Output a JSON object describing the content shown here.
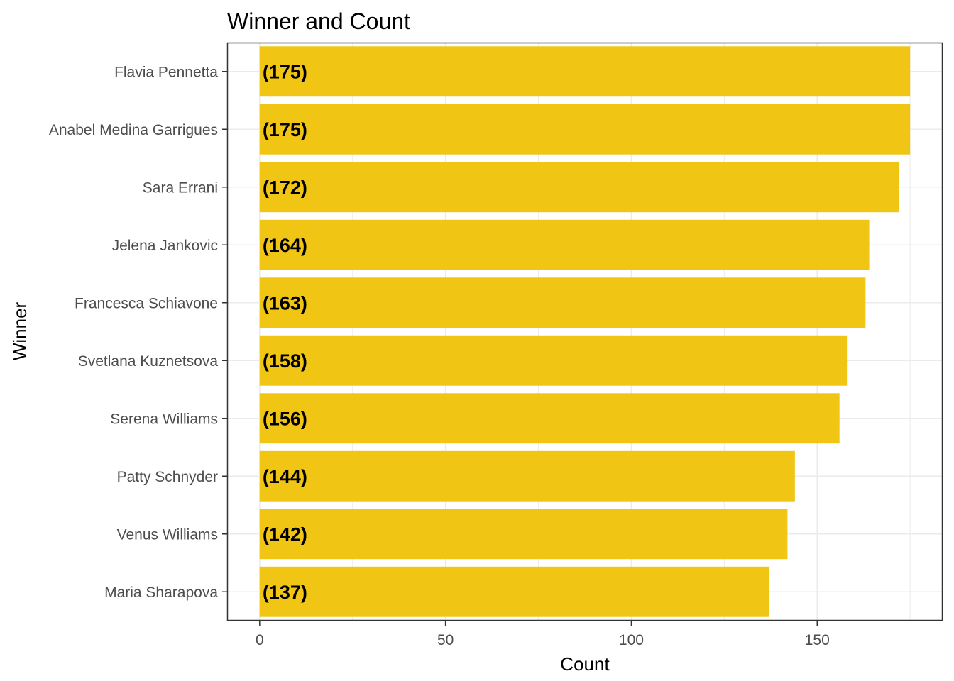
{
  "chart_data": {
    "type": "bar",
    "orientation": "horizontal",
    "title": "Winner and Count",
    "xlabel": "Count",
    "ylabel": "Winner",
    "categories": [
      "Flavia Pennetta",
      "Anabel Medina Garrigues",
      "Sara Errani",
      "Jelena Jankovic",
      "Francesca Schiavone",
      "Svetlana Kuznetsova",
      "Serena Williams",
      "Patty Schnyder",
      "Venus Williams",
      "Maria Sharapova"
    ],
    "values": [
      175,
      175,
      172,
      164,
      163,
      158,
      156,
      144,
      142,
      137
    ],
    "data_labels": [
      "(175)",
      "(175)",
      "(172)",
      "(164)",
      "(163)",
      "(158)",
      "(156)",
      "(144)",
      "(142)",
      "(137)"
    ],
    "xticks": [
      0,
      50,
      100,
      150
    ],
    "xtick_labels": [
      "0",
      "50",
      "100",
      "150"
    ],
    "xlim": [
      -8.75,
      183.75
    ],
    "grid": true,
    "legend": "none",
    "bar_color": "#F0C514",
    "grid_color": "#EBEBEB",
    "panel_border_color": "#333333"
  }
}
